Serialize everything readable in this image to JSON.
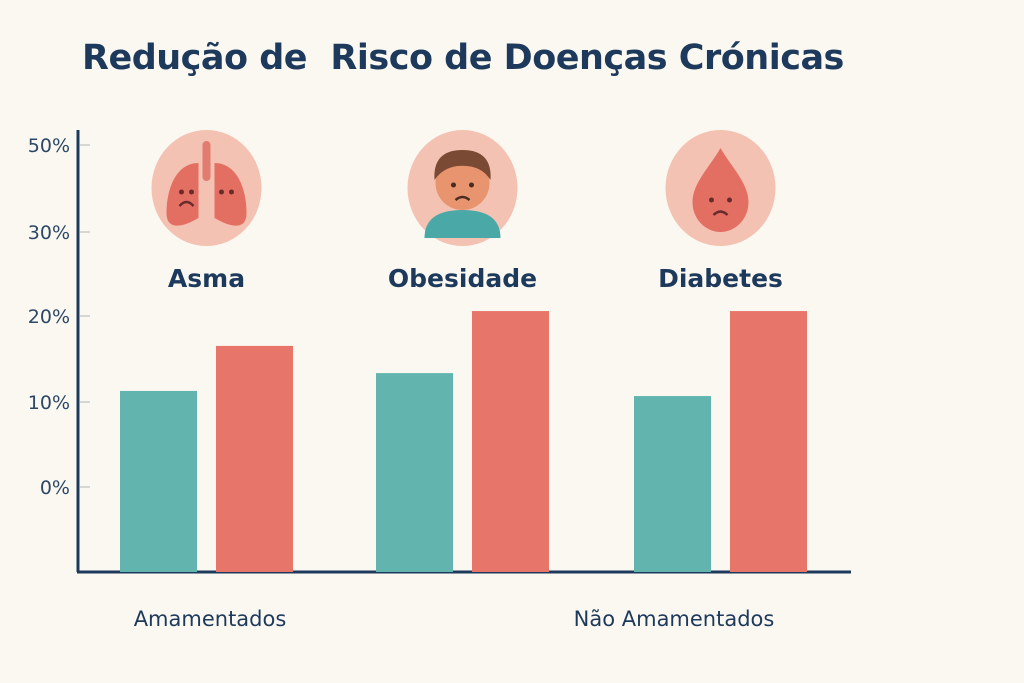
{
  "chart_data": {
    "type": "bar",
    "title": "Redução de  Risco de Doenças Crónicas",
    "categories": [
      "Asma",
      "Obesidade",
      "Diabetes"
    ],
    "category_icons": [
      "sad-lungs-icon",
      "sad-child-icon",
      "sad-blood-drop-icon"
    ],
    "series": [
      {
        "name": "Amamentados",
        "color": "#62b5ae",
        "values": [
          11.3,
          13.4,
          10.7
        ]
      },
      {
        "name": "Não Amamentados",
        "color": "#e8756a",
        "values": [
          16.6,
          20.7,
          20.7
        ]
      }
    ],
    "y_ticks": [
      "50%",
      "30%",
      "20%",
      "10%",
      "0%"
    ],
    "xlabel": "",
    "ylabel": "",
    "grid": false,
    "legend": "bottom"
  }
}
